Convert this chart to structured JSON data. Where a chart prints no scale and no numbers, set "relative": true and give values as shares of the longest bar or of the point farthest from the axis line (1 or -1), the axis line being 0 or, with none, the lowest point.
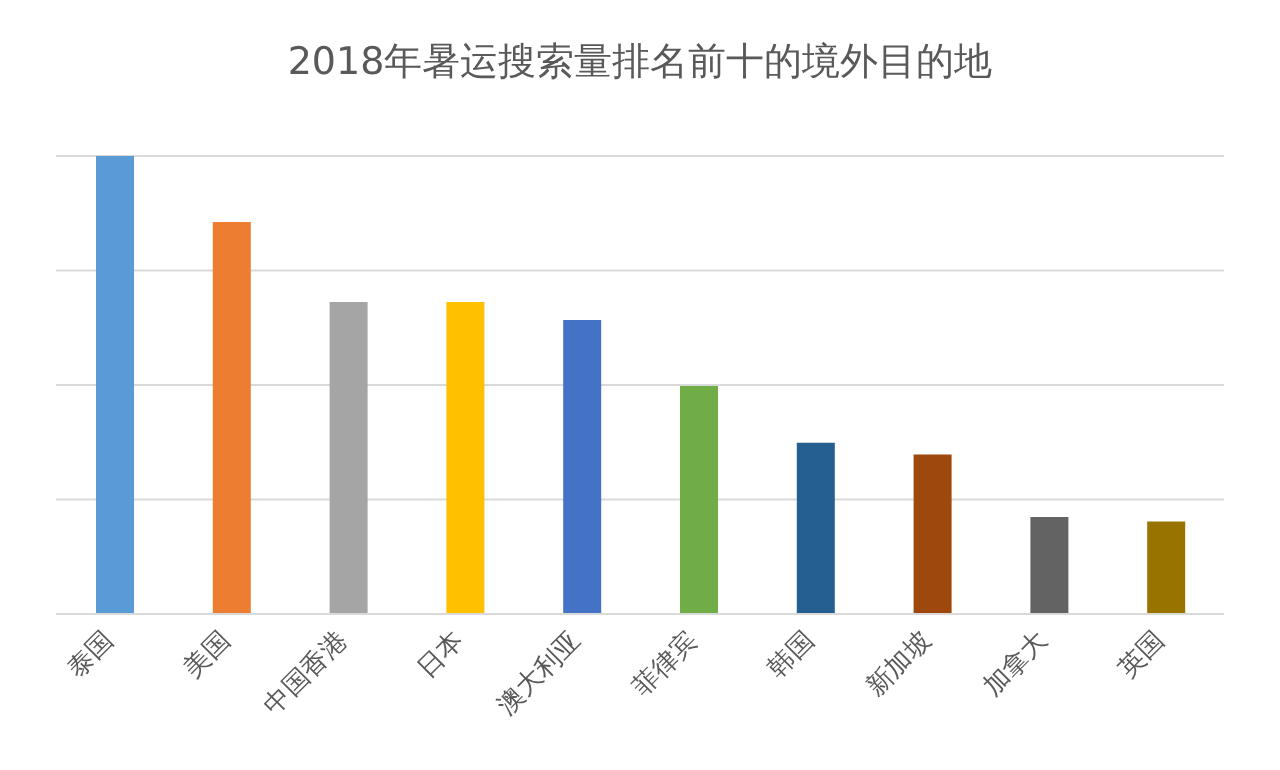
{
  "chart_data": {
    "type": "bar",
    "title": "2018年暑运搜索量排名前十的境外目的地",
    "categories": [
      "泰国",
      "美国",
      "中国香港",
      "日本",
      "澳大利亚",
      "菲律宾",
      "韩国",
      "新加坡",
      "加拿大",
      "英国"
    ],
    "values": [
      1,
      0.856,
      0.681,
      0.681,
      0.642,
      0.498,
      0.374,
      0.348,
      0.212,
      0.202
    ],
    "colors": [
      "#5b9bd5",
      "#ed7d31",
      "#a5a5a5",
      "#ffc000",
      "#4472c4",
      "#70ad47",
      "#255e91",
      "#9e480e",
      "#636363",
      "#997300"
    ],
    "relative": true,
    "grid": "y"
  }
}
